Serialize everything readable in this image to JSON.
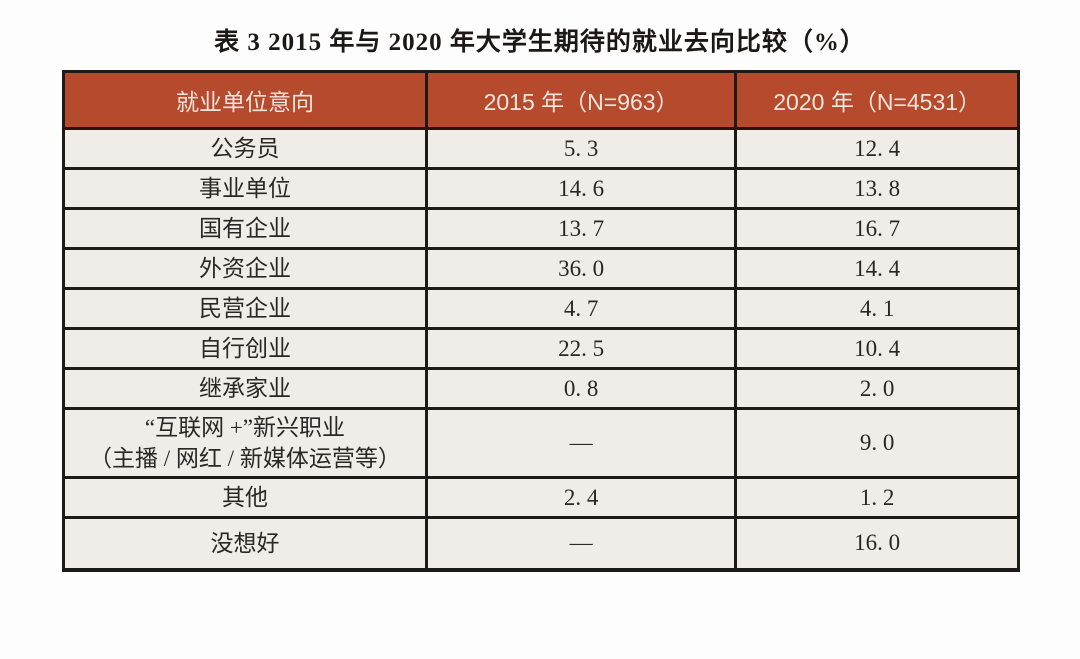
{
  "title": "表 3  2015 年与 2020 年大学生期待的就业去向比较（%）",
  "table": {
    "columns": [
      "就业单位意向",
      "2015 年（N=963）",
      "2020 年（N=4531）"
    ],
    "rows": [
      {
        "label": "公务员",
        "v2015": "5. 3",
        "v2020": "12. 4"
      },
      {
        "label": "事业单位",
        "v2015": "14. 6",
        "v2020": "13. 8"
      },
      {
        "label": "国有企业",
        "v2015": "13. 7",
        "v2020": "16. 7"
      },
      {
        "label": "外资企业",
        "v2015": "36. 0",
        "v2020": "14. 4"
      },
      {
        "label": "民营企业",
        "v2015": "4. 7",
        "v2020": "4. 1"
      },
      {
        "label": "自行创业",
        "v2015": "22. 5",
        "v2020": "10. 4"
      },
      {
        "label": "继承家业",
        "v2015": "0. 8",
        "v2020": "2. 0"
      },
      {
        "label": "“互联网 +”新兴职业\n（主播 / 网红 / 新媒体运营等）",
        "v2015": "—",
        "v2020": "9. 0"
      },
      {
        "label": "其他",
        "v2015": "2. 4",
        "v2020": "1. 2"
      },
      {
        "label": "没想好",
        "v2015": "—",
        "v2020": "16. 0"
      }
    ]
  },
  "chart_data": {
    "type": "table",
    "title": "表 3  2015 年与 2020 年大学生期待的就业去向比较（%）",
    "columns": [
      "就业单位意向",
      "2015 年（N=963）",
      "2020 年（N=4531）"
    ],
    "categories": [
      "公务员",
      "事业单位",
      "国有企业",
      "外资企业",
      "民营企业",
      "自行创业",
      "继承家业",
      "“互联网 +”新兴职业（主播 / 网红 / 新媒体运营等）",
      "其他",
      "没想好"
    ],
    "series": [
      {
        "name": "2015 年（N=963）",
        "values": [
          5.3,
          14.6,
          13.7,
          36.0,
          4.7,
          22.5,
          0.8,
          null,
          2.4,
          null
        ]
      },
      {
        "name": "2020 年（N=4531）",
        "values": [
          12.4,
          13.8,
          16.7,
          14.4,
          4.1,
          10.4,
          2.0,
          9.0,
          1.2,
          16.0
        ]
      }
    ],
    "missing_value_symbol": "—"
  },
  "colors": {
    "header_bg": "#b54a2d",
    "header_text": "#f4e5dd",
    "cell_bg": "#f0ede8",
    "border": "#1e1a17",
    "body_text": "#2b2724",
    "page_bg": "#fdfdfd"
  }
}
